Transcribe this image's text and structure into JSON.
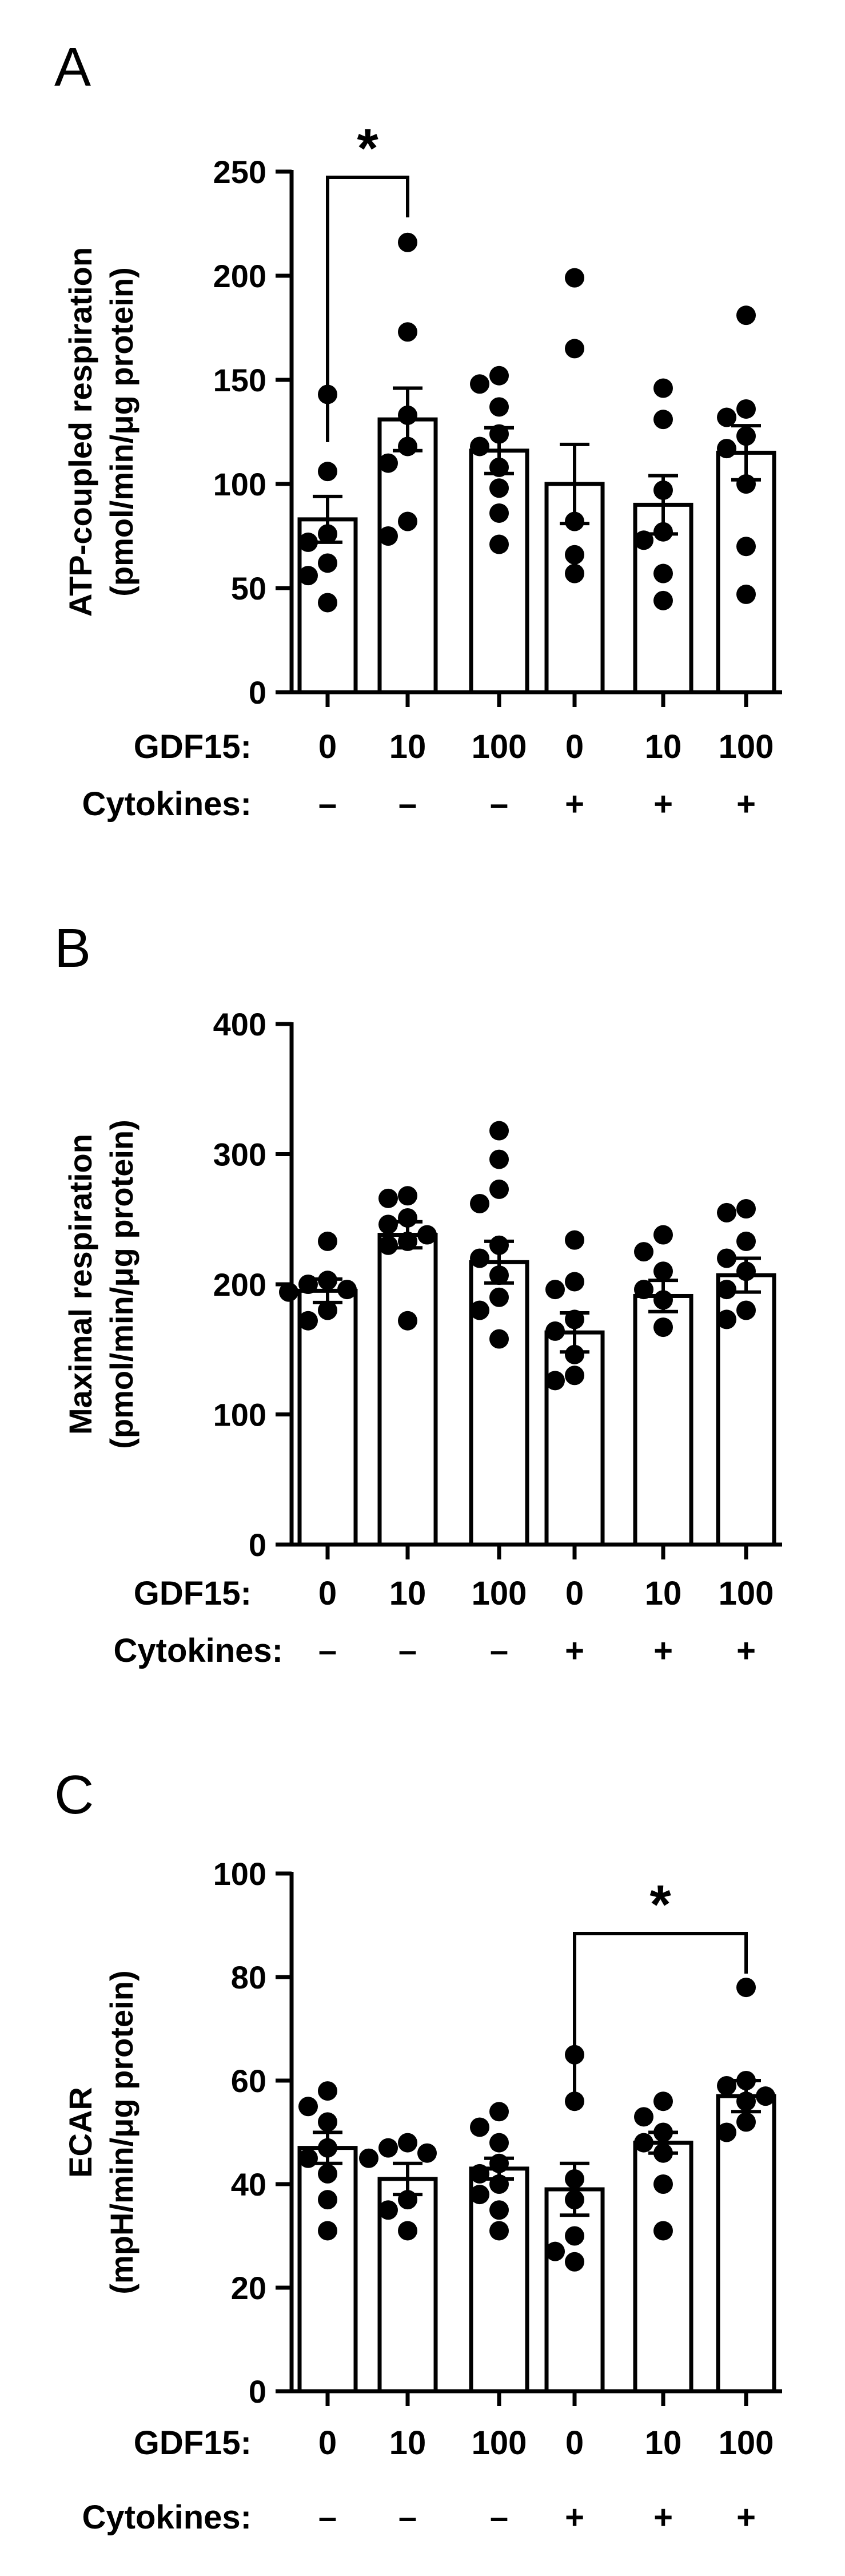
{
  "figure": {
    "row_labels": {
      "gdf15": "GDF15:",
      "cytokines": "Cytokines:"
    },
    "groups": [
      {
        "gdf15": "0",
        "cytokines": "–"
      },
      {
        "gdf15": "10",
        "cytokines": "–"
      },
      {
        "gdf15": "100",
        "cytokines": "–"
      },
      {
        "gdf15": "0",
        "cytokines": "+"
      },
      {
        "gdf15": "10",
        "cytokines": "+"
      },
      {
        "gdf15": "100",
        "cytokines": "+"
      }
    ],
    "colors": {
      "bar_fill": "#ffffff",
      "ink": "#000000"
    }
  },
  "chart_data": [
    {
      "panel": "A",
      "type": "bar",
      "ylabel_line1": "ATP-coupled respiration",
      "ylabel_line2": "(pmol/min/μg protein)",
      "ylim": [
        0,
        250
      ],
      "yticks": [
        0,
        50,
        100,
        150,
        200,
        250
      ],
      "categories": [
        "0 / –",
        "10 / –",
        "100 / –",
        "0 / +",
        "10 / +",
        "100 / +"
      ],
      "means": [
        83,
        131,
        116,
        100,
        90,
        115
      ],
      "sem": [
        11,
        15,
        11,
        19,
        14,
        13
      ],
      "points": [
        [
          143,
          106,
          76,
          72,
          62,
          56,
          43
        ],
        [
          216,
          173,
          133,
          118,
          110,
          82,
          75
        ],
        [
          152,
          148,
          137,
          124,
          118,
          108,
          98,
          86,
          71
        ],
        [
          199,
          165,
          82,
          66,
          57
        ],
        [
          146,
          131,
          97,
          77,
          73,
          57,
          44
        ],
        [
          181,
          136,
          132,
          123,
          117,
          100,
          70,
          47
        ]
      ],
      "significance": [
        {
          "from": 0,
          "to": 1,
          "label": "*"
        }
      ],
      "grid": false
    },
    {
      "panel": "B",
      "type": "bar",
      "ylabel_line1": "Maximal respiration",
      "ylabel_line2": "(pmol/min/μg protein)",
      "ylim": [
        0,
        400
      ],
      "yticks": [
        0,
        100,
        200,
        300,
        400
      ],
      "categories": [
        "0 / –",
        "10 / –",
        "100 / –",
        "0 / +",
        "10 / +",
        "100 / +"
      ],
      "means": [
        195,
        238,
        217,
        163,
        191,
        207
      ],
      "sem": [
        9,
        10,
        16,
        15,
        12,
        13
      ],
      "points": [
        [
          233,
          203,
          200,
          196,
          194,
          180,
          172
        ],
        [
          268,
          266,
          251,
          246,
          238,
          233,
          230,
          172
        ],
        [
          318,
          296,
          273,
          262,
          230,
          220,
          207,
          190,
          180,
          158
        ],
        [
          234,
          202,
          196,
          173,
          164,
          146,
          130,
          126
        ],
        [
          238,
          225,
          210,
          196,
          188,
          167
        ],
        [
          258,
          255,
          233,
          220,
          210,
          196,
          180,
          173
        ]
      ],
      "significance": [],
      "grid": false
    },
    {
      "panel": "C",
      "type": "bar",
      "ylabel_line1": "ECAR",
      "ylabel_line2": "(mpH/min/μg protein)",
      "ylim": [
        0,
        100
      ],
      "yticks": [
        0,
        20,
        40,
        60,
        80,
        100
      ],
      "categories": [
        "0 / –",
        "10 / –",
        "100 / –",
        "0 / +",
        "10 / +",
        "100 / +"
      ],
      "means": [
        47,
        41,
        43,
        39,
        48,
        57
      ],
      "sem": [
        3,
        3,
        2,
        5,
        2,
        3
      ],
      "points": [
        [
          58,
          55,
          52,
          47,
          45,
          42,
          37,
          31
        ],
        [
          48,
          47,
          46,
          45,
          37,
          35,
          31
        ],
        [
          54,
          51,
          48,
          44,
          42,
          40,
          38,
          35,
          31
        ],
        [
          65,
          56,
          41,
          37,
          30,
          27,
          25
        ],
        [
          56,
          53,
          50,
          48,
          46,
          40,
          31
        ],
        [
          78,
          60,
          59,
          57,
          56,
          52,
          50
        ]
      ],
      "significance": [
        {
          "from": 3,
          "to": 5,
          "label": "*"
        }
      ],
      "grid": false
    }
  ]
}
